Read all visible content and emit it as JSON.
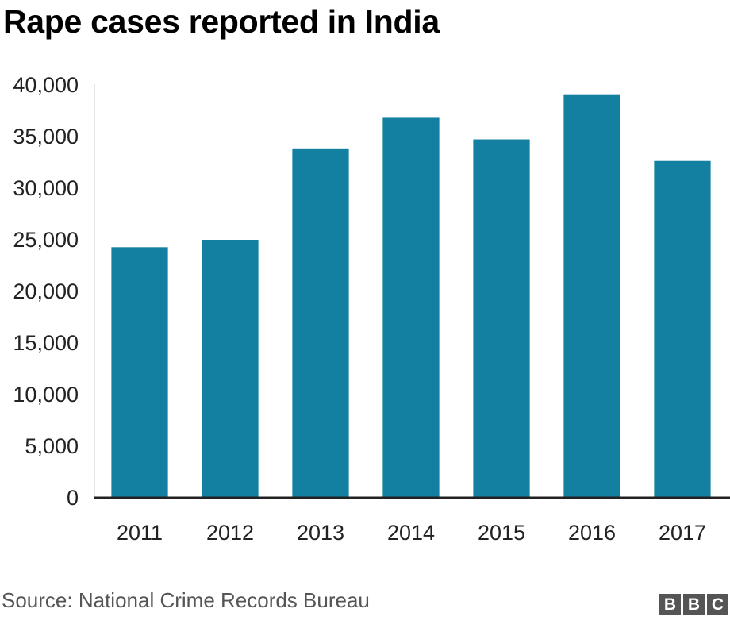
{
  "chart_data": {
    "type": "bar",
    "title": "Rape cases reported in India",
    "categories": [
      "2011",
      "2012",
      "2013",
      "2014",
      "2015",
      "2016",
      "2017"
    ],
    "values": [
      24206,
      24923,
      33707,
      36735,
      34651,
      38947,
      32559
    ],
    "ylim": [
      0,
      40000
    ],
    "yticks": [
      0,
      5000,
      10000,
      15000,
      20000,
      25000,
      30000,
      35000,
      40000
    ],
    "ytick_labels": [
      "0",
      "5,000",
      "10,000",
      "15,000",
      "20,000",
      "25,000",
      "30,000",
      "35,000",
      "40,000"
    ],
    "xlabel": "",
    "ylabel": "",
    "grid": false,
    "bar_color": "#1380a1"
  },
  "footer": {
    "source": "Source: National Crime Records Bureau",
    "logo_letters": [
      "B",
      "B",
      "C"
    ]
  }
}
